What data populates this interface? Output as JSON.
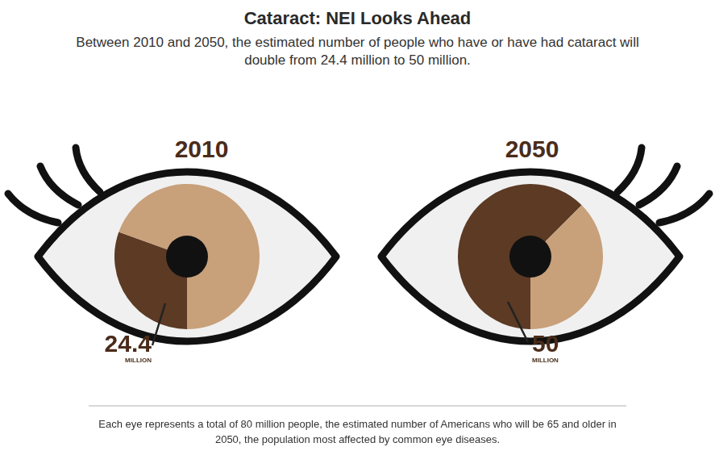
{
  "title": "Cataract: NEI Looks Ahead",
  "subtitle": "Between 2010 and 2050, the estimated number of people who have or have had cataract will double from 24.4 million to 50 million.",
  "footnote": "Each eye represents a total of 80 million people, the estimated number of Americans who will be 65 and older in 2050, the population most affected by common eye diseases.",
  "chart_data": [
    {
      "type": "pie",
      "title": "2010",
      "categories": [
        null,
        null
      ],
      "values": [
        24.4,
        55.6
      ],
      "colors": [
        "#5c3a24",
        "#c8a07a"
      ],
      "data_labels": true,
      "value_labels": [
        "24.4 MILLION",
        null
      ]
    },
    {
      "type": "pie",
      "title": "2050",
      "categories": [
        null,
        null
      ],
      "values": [
        50,
        30
      ],
      "colors": [
        "#5c3a24",
        "#c8a07a"
      ],
      "data_labels": true,
      "value_labels": [
        "50 MILLION",
        null
      ]
    }
  ]
}
